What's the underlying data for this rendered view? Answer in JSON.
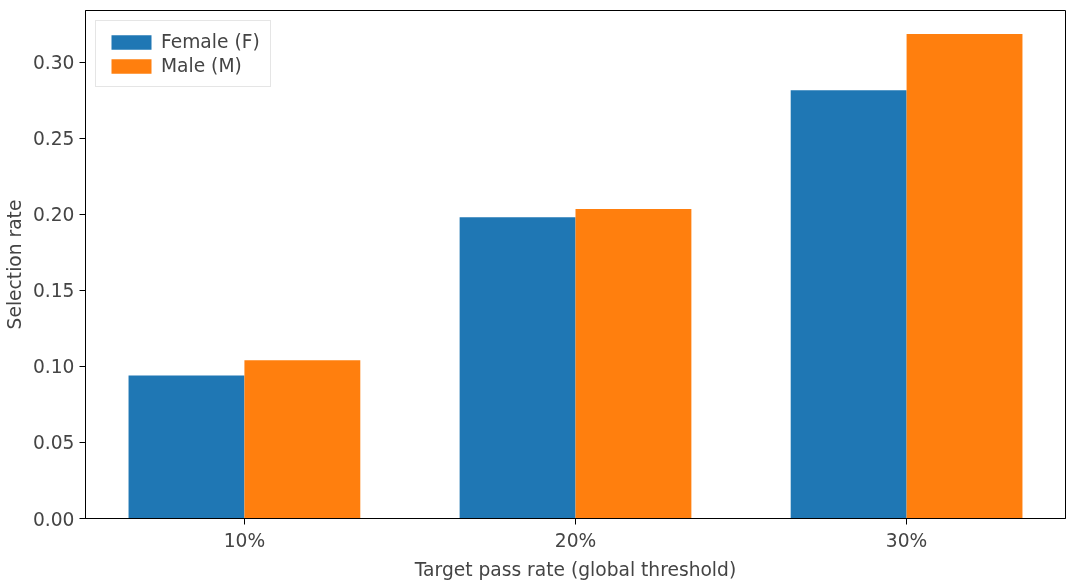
{
  "chart_data": {
    "type": "bar",
    "xlabel": "Target pass rate (global threshold)",
    "ylabel": "Selection rate",
    "categories": [
      "10%",
      "20%",
      "30%"
    ],
    "series": [
      {
        "name": "Female (F)",
        "color": "#1f77b4",
        "values": [
          0.094,
          0.198,
          0.2815
        ]
      },
      {
        "name": "Male (M)",
        "color": "#ff7f0e",
        "values": [
          0.104,
          0.2035,
          0.3185
        ]
      }
    ],
    "ylim": [
      0,
      0.334
    ],
    "yticks": [
      {
        "value": 0,
        "label": "0.00"
      },
      {
        "value": 0.05,
        "label": "0.05"
      },
      {
        "value": 0.1,
        "label": "0.10"
      },
      {
        "value": 0.15,
        "label": "0.15"
      },
      {
        "value": 0.2,
        "label": "0.20"
      },
      {
        "value": 0.25,
        "label": "0.25"
      },
      {
        "value": 0.3,
        "label": "0.30"
      }
    ],
    "grid": false,
    "legend": "top left"
  }
}
